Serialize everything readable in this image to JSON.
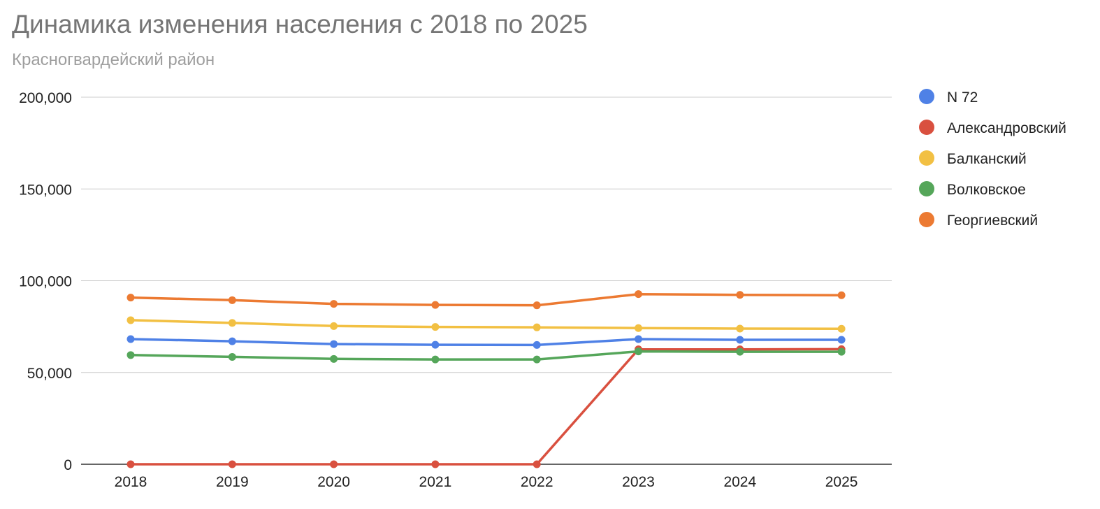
{
  "chart_data": {
    "type": "line",
    "title": "Динамика изменения населения с 2018 по 2025",
    "subtitle": "Красногвардейский район",
    "xlabel": "",
    "ylabel": "",
    "categories": [
      "2018",
      "2019",
      "2020",
      "2021",
      "2022",
      "2023",
      "2024",
      "2025"
    ],
    "ylim": [
      0,
      200000
    ],
    "yticks": [
      0,
      50000,
      100000,
      150000,
      200000
    ],
    "ytick_labels": [
      "0",
      "50,000",
      "100,000",
      "150,000",
      "200,000"
    ],
    "grid": true,
    "legend_position": "right",
    "series": [
      {
        "name": "N 72",
        "color": "#4f81e6",
        "values": [
          68200,
          67000,
          65500,
          65100,
          65000,
          68200,
          67800,
          67800
        ]
      },
      {
        "name": "Александровский",
        "color": "#d9503f",
        "values": [
          0,
          0,
          0,
          0,
          0,
          62600,
          62600,
          62700
        ]
      },
      {
        "name": "Балканский",
        "color": "#f2c043",
        "values": [
          78500,
          77000,
          75300,
          74800,
          74600,
          74200,
          73900,
          73800
        ]
      },
      {
        "name": "Волковское",
        "color": "#55a65a",
        "values": [
          59500,
          58500,
          57400,
          57100,
          57100,
          61500,
          61300,
          61300
        ]
      },
      {
        "name": "Георгиевский",
        "color": "#ec7a32",
        "values": [
          90800,
          89400,
          87400,
          86800,
          86600,
          92700,
          92300,
          92100
        ]
      }
    ]
  }
}
